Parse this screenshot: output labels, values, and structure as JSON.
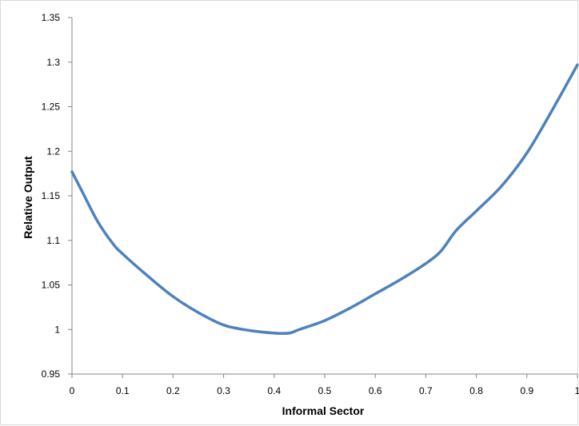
{
  "chart_data": {
    "type": "line",
    "title": "",
    "xlabel": "Informal Sector",
    "ylabel": "Relative Output",
    "xlim": [
      0,
      1
    ],
    "ylim": [
      0.95,
      1.35
    ],
    "x_ticks": [
      "0",
      "0.1",
      "0.2",
      "0.3",
      "0.4",
      "0.5",
      "0.6",
      "0.7",
      "0.8",
      "0.9",
      "1"
    ],
    "y_ticks": [
      "0.95",
      "1",
      "1.05",
      "1.1",
      "1.15",
      "1.2",
      "1.25",
      "1.3",
      "1.35"
    ],
    "grid": false,
    "legend": "none",
    "line_color": "#4f81bd",
    "series": [
      {
        "x": [
          0,
          0.02,
          0.05,
          0.08,
          0.1,
          0.15,
          0.2,
          0.25,
          0.3,
          0.35,
          0.4,
          0.43,
          0.45,
          0.5,
          0.55,
          0.6,
          0.65,
          0.7,
          0.73,
          0.76,
          0.8,
          0.85,
          0.9,
          0.95,
          1.0
        ],
        "values": [
          1.177,
          1.155,
          1.122,
          1.097,
          1.085,
          1.06,
          1.037,
          1.019,
          1.005,
          0.999,
          0.996,
          0.996,
          1.0,
          1.01,
          1.024,
          1.04,
          1.056,
          1.074,
          1.088,
          1.111,
          1.133,
          1.161,
          1.198,
          1.246,
          1.297
        ]
      }
    ]
  }
}
